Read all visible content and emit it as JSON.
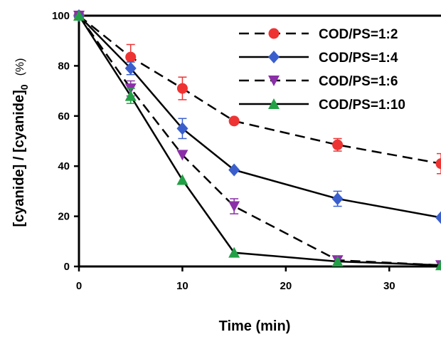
{
  "chart_data": {
    "type": "line",
    "xlabel": "Time (min)",
    "ylabel": "[cyanide] / [cyanide]",
    "ylabel_subscript": "0",
    "ylabel_unit": "(%)",
    "xlim": [
      0,
      35
    ],
    "ylim": [
      0,
      100
    ],
    "xticks": [
      0,
      10,
      20,
      30
    ],
    "yticks": [
      0,
      20,
      40,
      60,
      80,
      100
    ],
    "grid": false,
    "legend_position": "top-right",
    "series": [
      {
        "name": "COD/PS=1:2",
        "marker": "circle",
        "color": "#ee3333",
        "dash": true,
        "x": [
          0,
          5,
          10,
          15,
          25,
          35
        ],
        "y": [
          100,
          83.5,
          71,
          58,
          48.5,
          41
        ],
        "err": [
          0,
          5,
          4.5,
          0,
          2.5,
          4
        ]
      },
      {
        "name": "COD/PS=1:4",
        "marker": "diamond",
        "color": "#3a5fcd",
        "dash": false,
        "x": [
          0,
          5,
          10,
          15,
          25,
          35
        ],
        "y": [
          100,
          79,
          55,
          38.5,
          27,
          19.5
        ],
        "err": [
          0,
          2.5,
          4,
          0,
          3,
          0
        ]
      },
      {
        "name": "COD/PS=1:6",
        "marker": "triangle-down",
        "color": "#8b2fa8",
        "dash": true,
        "x": [
          0,
          5,
          10,
          15,
          25,
          35
        ],
        "y": [
          100,
          71,
          44.5,
          24,
          2.5,
          0.5
        ],
        "err": [
          0,
          3,
          0,
          3,
          0,
          0
        ]
      },
      {
        "name": "COD/PS=1:10",
        "marker": "triangle-up",
        "color": "#22a045",
        "dash": false,
        "x": [
          0,
          5,
          10,
          15,
          25,
          35
        ],
        "y": [
          100,
          68,
          34.5,
          5.5,
          2,
          0.5
        ],
        "err": [
          0,
          3,
          0,
          0,
          0,
          0
        ]
      }
    ]
  }
}
